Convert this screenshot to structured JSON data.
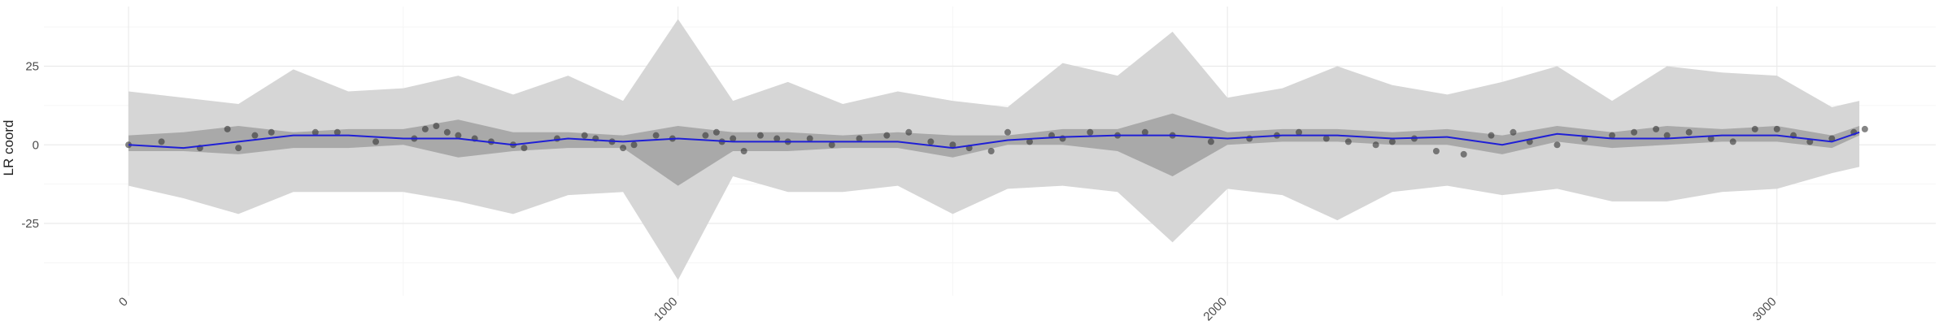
{
  "chart_data": {
    "type": "line",
    "y_label": "LR coord",
    "xlim": [
      -154,
      3289
    ],
    "ylim": [
      -48,
      44
    ],
    "xticks": [
      0,
      1000,
      2000,
      3000
    ],
    "yticks": [
      -25,
      0,
      25
    ],
    "grid": true,
    "x": [
      0,
      100,
      200,
      300,
      400,
      500,
      600,
      700,
      800,
      900,
      1000,
      1100,
      1200,
      1300,
      1400,
      1500,
      1600,
      1700,
      1800,
      1900,
      2000,
      2100,
      2200,
      2300,
      2400,
      2500,
      2600,
      2700,
      2800,
      2900,
      3000,
      3100,
      3150
    ],
    "outer_band": {
      "color": "#d6d6d6",
      "upper": [
        17,
        15,
        13,
        24,
        17,
        18,
        22,
        16,
        22,
        14,
        40,
        14,
        20,
        13,
        17,
        14,
        12,
        26,
        22,
        36,
        15,
        18,
        25,
        19,
        16,
        20,
        25,
        14,
        25,
        23,
        22,
        12,
        14
      ],
      "lower": [
        -13,
        -17,
        -22,
        -15,
        -15,
        -15,
        -18,
        -22,
        -16,
        -15,
        -43,
        -10,
        -15,
        -15,
        -13,
        -22,
        -14,
        -13,
        -15,
        -31,
        -14,
        -16,
        -24,
        -15,
        -13,
        -16,
        -14,
        -18,
        -18,
        -15,
        -14,
        -9,
        -7
      ]
    },
    "inner_band": {
      "color": "#a9a9a9",
      "upper": [
        3,
        4,
        6,
        4,
        5,
        5,
        8,
        4,
        4,
        3,
        6,
        4,
        4,
        3,
        4,
        3,
        3,
        5,
        5,
        10,
        4,
        5,
        5,
        4,
        5,
        3,
        6,
        4,
        6,
        5,
        6,
        3,
        6
      ],
      "lower": [
        -2,
        -2,
        -3,
        -1,
        -1,
        0,
        -4,
        -2,
        -1,
        -1,
        -13,
        -2,
        -2,
        -1,
        -1,
        -4,
        0,
        0,
        -2,
        -10,
        0,
        1,
        1,
        0,
        0,
        -3,
        1,
        -1,
        0,
        1,
        1,
        -1,
        3
      ]
    },
    "series": [
      {
        "color": "#1f1fd6",
        "values": [
          0,
          -1,
          1,
          3,
          3,
          2,
          2,
          0,
          2,
          1,
          2,
          1,
          1,
          1,
          1,
          -1,
          1.5,
          2.5,
          3,
          3,
          2,
          3,
          3,
          2,
          2.5,
          0,
          3.5,
          2,
          2,
          3,
          3,
          1,
          4
        ]
      }
    ],
    "points": {
      "color": "#333333",
      "x": [
        0,
        60,
        130,
        180,
        200,
        230,
        260,
        340,
        380,
        450,
        520,
        540,
        560,
        580,
        600,
        630,
        660,
        700,
        720,
        780,
        830,
        850,
        880,
        900,
        920,
        960,
        990,
        1050,
        1070,
        1080,
        1100,
        1120,
        1150,
        1180,
        1200,
        1240,
        1280,
        1330,
        1380,
        1420,
        1460,
        1500,
        1530,
        1570,
        1600,
        1640,
        1680,
        1700,
        1750,
        1800,
        1850,
        1900,
        1970,
        2040,
        2090,
        2130,
        2180,
        2220,
        2270,
        2300,
        2340,
        2380,
        2430,
        2480,
        2520,
        2550,
        2600,
        2650,
        2700,
        2740,
        2780,
        2800,
        2840,
        2880,
        2920,
        2960,
        3000,
        3030,
        3060,
        3100,
        3140,
        3160
      ],
      "y": [
        0,
        1,
        -1,
        5,
        -1,
        3,
        4,
        4,
        4,
        1,
        2,
        5,
        6,
        4,
        3,
        2,
        1,
        0,
        -1,
        2,
        3,
        2,
        1,
        -1,
        0,
        3,
        2,
        3,
        4,
        1,
        2,
        -2,
        3,
        2,
        1,
        2,
        0,
        2,
        3,
        4,
        1,
        0,
        -1,
        -2,
        4,
        1,
        3,
        2,
        4,
        3,
        4,
        3,
        1,
        2,
        3,
        4,
        2,
        1,
        0,
        1,
        2,
        -2,
        -3,
        3,
        4,
        1,
        0,
        2,
        3,
        4,
        5,
        3,
        4,
        2,
        1,
        5,
        5,
        3,
        1,
        2,
        4,
        5
      ]
    }
  }
}
